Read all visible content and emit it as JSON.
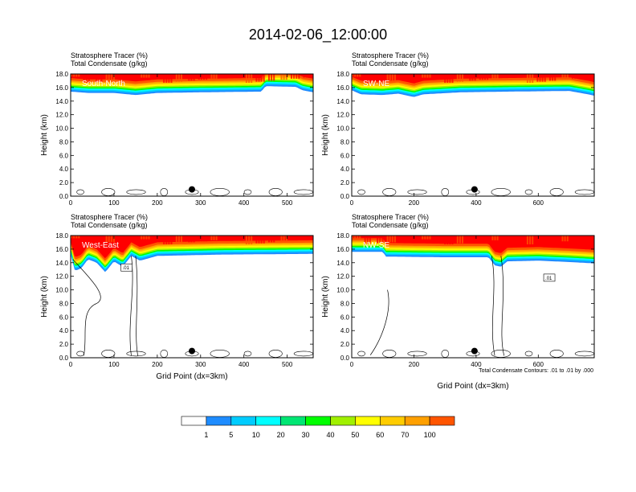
{
  "figure": {
    "title": "2014-02-06_12:00:00",
    "contour_note": "Total Condensate Contours: .01 to .01 by .000"
  },
  "colors": {
    "levels": [
      "#ffffff",
      "#1e8cff",
      "#00ccff",
      "#00ffff",
      "#00e673",
      "#00ff00",
      "#a0f000",
      "#ffff00",
      "#ffcc00",
      "#ffa000",
      "#ff5500",
      "#ff0000"
    ],
    "contour": "#000000",
    "frame": "#000000"
  },
  "colorbar": {
    "labels": [
      "1",
      "5",
      "10",
      "20",
      "30",
      "40",
      "50",
      "60",
      "70",
      "100"
    ]
  },
  "chart_data": [
    {
      "type": "heatmap",
      "section_label": "South-North",
      "title_line1": "Stratosphere Tracer   (%)",
      "title_line2": "Total Condensate   (g/kg)",
      "ylabel": "Height (km)",
      "xlabel": "",
      "xlim": [
        0,
        560
      ],
      "ylim": [
        0,
        18
      ],
      "xticks": [
        "0",
        "100",
        "200",
        "300",
        "400",
        "500"
      ],
      "xtick_values": [
        0,
        100,
        200,
        300,
        400,
        500
      ],
      "yticks": [
        "0.0",
        "2.0",
        "4.0",
        "6.0",
        "8.0",
        "10.0",
        "12.0",
        "14.0",
        "16.0",
        "18.0"
      ],
      "tracer_base_profile": [
        [
          0,
          15.4
        ],
        [
          40,
          15.2
        ],
        [
          100,
          15.2
        ],
        [
          150,
          14.9
        ],
        [
          200,
          15.2
        ],
        [
          300,
          15.3
        ],
        [
          440,
          15.4
        ],
        [
          450,
          16.2
        ],
        [
          520,
          16.1
        ],
        [
          535,
          15.6
        ],
        [
          560,
          15.3
        ]
      ],
      "marker": {
        "x": 280,
        "y": 1.0
      },
      "contour_label": ""
    },
    {
      "type": "heatmap",
      "section_label": "SW-NE",
      "title_line1": "Stratosphere Tracer   (%)",
      "title_line2": "Total Condensate   (g/kg)",
      "ylabel": "Height (km)",
      "xlabel": "",
      "xlim": [
        0,
        780
      ],
      "ylim": [
        0,
        18
      ],
      "xticks": [
        "0",
        "200",
        "400",
        "600"
      ],
      "xtick_values": [
        0,
        200,
        400,
        600
      ],
      "yticks": [
        "0.0",
        "2.0",
        "4.0",
        "6.0",
        "8.0",
        "10.0",
        "12.0",
        "14.0",
        "16.0",
        "18.0"
      ],
      "tracer_base_profile": [
        [
          0,
          15.6
        ],
        [
          30,
          15.0
        ],
        [
          100,
          14.9
        ],
        [
          150,
          15.1
        ],
        [
          200,
          14.6
        ],
        [
          230,
          15.0
        ],
        [
          350,
          15.3
        ],
        [
          500,
          15.4
        ],
        [
          700,
          15.5
        ],
        [
          760,
          15.0
        ],
        [
          780,
          14.8
        ]
      ],
      "marker": {
        "x": 395,
        "y": 1.0
      },
      "contour_label": ""
    },
    {
      "type": "heatmap",
      "section_label": "West-East",
      "title_line1": "Stratosphere Tracer   (%)",
      "title_line2": "Total Condensate   (g/kg)",
      "ylabel": "Height (km)",
      "xlabel": "Grid Point (dx=3km)",
      "xlim": [
        0,
        560
      ],
      "ylim": [
        0,
        18
      ],
      "xticks": [
        "0",
        "100",
        "200",
        "300",
        "400",
        "500"
      ],
      "xtick_values": [
        0,
        100,
        200,
        300,
        400,
        500
      ],
      "yticks": [
        "0.0",
        "2.0",
        "4.0",
        "6.0",
        "8.0",
        "10.0",
        "12.0",
        "14.0",
        "16.0",
        "18.0"
      ],
      "tracer_base_profile": [
        [
          0,
          15.2
        ],
        [
          10,
          12.8
        ],
        [
          25,
          13.2
        ],
        [
          40,
          14.5
        ],
        [
          60,
          14.0
        ],
        [
          80,
          12.6
        ],
        [
          100,
          14.2
        ],
        [
          120,
          13.4
        ],
        [
          140,
          15.0
        ],
        [
          160,
          14.3
        ],
        [
          200,
          15.0
        ],
        [
          350,
          15.2
        ],
        [
          560,
          15.3
        ]
      ],
      "marker": {
        "x": 280,
        "y": 1.0
      },
      "contour_label": ".01"
    },
    {
      "type": "heatmap",
      "section_label": "NW-SE",
      "title_line1": "Stratosphere Tracer   (%)",
      "title_line2": "Total Condensate   (g/kg)",
      "ylabel": "Height (km)",
      "xlabel": "Grid Point (dx=3km)",
      "xlim": [
        0,
        780
      ],
      "ylim": [
        0,
        18
      ],
      "xticks": [
        "0",
        "200",
        "400",
        "600"
      ],
      "xtick_values": [
        0,
        200,
        400,
        600
      ],
      "yticks": [
        "0.0",
        "2.0",
        "4.0",
        "6.0",
        "8.0",
        "10.0",
        "12.0",
        "14.0",
        "16.0",
        "18.0"
      ],
      "tracer_base_profile": [
        [
          0,
          15.6
        ],
        [
          100,
          15.6
        ],
        [
          110,
          14.9
        ],
        [
          300,
          14.8
        ],
        [
          440,
          14.8
        ],
        [
          460,
          13.6
        ],
        [
          480,
          13.4
        ],
        [
          500,
          14.2
        ],
        [
          600,
          14.3
        ],
        [
          700,
          14.1
        ],
        [
          780,
          13.9
        ]
      ],
      "marker": {
        "x": 395,
        "y": 1.0
      },
      "contour_label": ".01"
    }
  ]
}
